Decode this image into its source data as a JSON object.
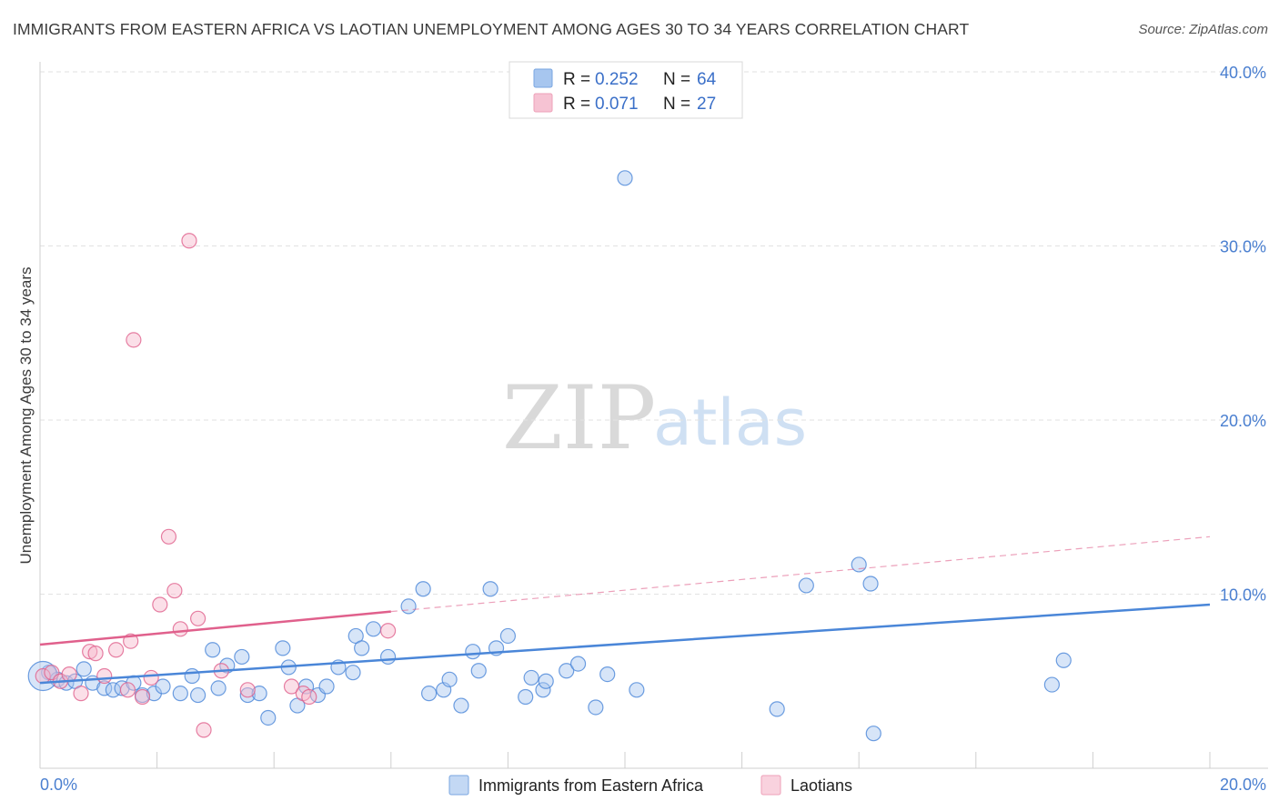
{
  "title": "IMMIGRANTS FROM EASTERN AFRICA VS LAOTIAN UNEMPLOYMENT AMONG AGES 30 TO 34 YEARS CORRELATION CHART",
  "source": "Source: ZipAtlas.com",
  "watermark": {
    "zip": "ZIP",
    "atlas": "atlas"
  },
  "legend_top": [
    {
      "r_label": "R =",
      "r_value": "0.252",
      "n_label": "N =",
      "n_value": "64",
      "color": "#a7c6ef"
    },
    {
      "r_label": "R =",
      "r_value": "0.071",
      "n_label": "N =",
      "n_value": "27",
      "color": "#f6b8cb"
    }
  ],
  "chart_data": {
    "type": "scatter",
    "xlabel": "",
    "ylabel": "Unemployment Among Ages 30 to 34 years",
    "xlim": [
      0,
      20
    ],
    "ylim": [
      0,
      40
    ],
    "x_tick_labels": [
      "0.0%",
      "20.0%"
    ],
    "y_ticks": [
      10,
      20,
      30,
      40
    ],
    "y_tick_labels": [
      "10.0%",
      "20.0%",
      "30.0%",
      "40.0%"
    ],
    "grid": "horizontal dashed",
    "legend_placement": "bottom-center",
    "series": [
      {
        "name": "Immigrants from Eastern Africa",
        "color": "#4a86d8",
        "fill": "#a7c6ef",
        "trend": {
          "x": [
            0,
            20
          ],
          "y": [
            4.9,
            9.4
          ],
          "style": "solid"
        },
        "points": [
          [
            0.15,
            5.5
          ],
          [
            0.3,
            5.1
          ],
          [
            0.45,
            4.9
          ],
          [
            0.6,
            5.0
          ],
          [
            0.75,
            5.7
          ],
          [
            0.9,
            4.9
          ],
          [
            1.1,
            4.6
          ],
          [
            1.25,
            4.5
          ],
          [
            1.4,
            4.6
          ],
          [
            1.6,
            4.9
          ],
          [
            1.75,
            4.2
          ],
          [
            1.95,
            4.3
          ],
          [
            2.1,
            4.7
          ],
          [
            2.4,
            4.3
          ],
          [
            2.6,
            5.3
          ],
          [
            2.7,
            4.2
          ],
          [
            2.95,
            6.8
          ],
          [
            3.05,
            4.6
          ],
          [
            3.2,
            5.9
          ],
          [
            3.45,
            6.4
          ],
          [
            3.55,
            4.2
          ],
          [
            3.75,
            4.3
          ],
          [
            3.9,
            2.9
          ],
          [
            4.15,
            6.9
          ],
          [
            4.25,
            5.8
          ],
          [
            4.4,
            3.6
          ],
          [
            4.55,
            4.7
          ],
          [
            4.75,
            4.2
          ],
          [
            4.9,
            4.7
          ],
          [
            5.1,
            5.8
          ],
          [
            5.35,
            5.5
          ],
          [
            5.4,
            7.6
          ],
          [
            5.5,
            6.9
          ],
          [
            5.7,
            8.0
          ],
          [
            5.95,
            6.4
          ],
          [
            6.3,
            9.3
          ],
          [
            6.55,
            10.3
          ],
          [
            6.65,
            4.3
          ],
          [
            6.9,
            4.5
          ],
          [
            7.0,
            5.1
          ],
          [
            7.2,
            3.6
          ],
          [
            7.4,
            6.7
          ],
          [
            7.5,
            5.6
          ],
          [
            7.7,
            10.3
          ],
          [
            7.8,
            6.9
          ],
          [
            8.0,
            7.6
          ],
          [
            8.3,
            4.1
          ],
          [
            8.4,
            5.2
          ],
          [
            8.6,
            4.5
          ],
          [
            8.65,
            5.0
          ],
          [
            9.0,
            5.6
          ],
          [
            9.2,
            6.0
          ],
          [
            9.5,
            3.5
          ],
          [
            9.7,
            5.4
          ],
          [
            10.0,
            33.9
          ],
          [
            10.2,
            4.5
          ],
          [
            12.6,
            3.4
          ],
          [
            13.1,
            10.5
          ],
          [
            14.0,
            11.7
          ],
          [
            14.2,
            10.6
          ],
          [
            14.25,
            2.0
          ],
          [
            17.3,
            4.8
          ],
          [
            17.5,
            6.2
          ],
          [
            0.05,
            5.3
          ]
        ]
      },
      {
        "name": "Laotians",
        "color": "#e0608c",
        "fill": "#f6b8cb",
        "trend": {
          "x": [
            0,
            6
          ],
          "y": [
            7.1,
            9.0
          ],
          "style": "solid",
          "extended": {
            "x": [
              6,
              20
            ],
            "y": [
              9.0,
              13.3
            ],
            "style": "dashed"
          }
        },
        "points": [
          [
            0.05,
            5.3
          ],
          [
            0.2,
            5.5
          ],
          [
            0.35,
            5.0
          ],
          [
            0.5,
            5.4
          ],
          [
            0.7,
            4.3
          ],
          [
            0.85,
            6.7
          ],
          [
            0.95,
            6.6
          ],
          [
            1.1,
            5.3
          ],
          [
            1.3,
            6.8
          ],
          [
            1.5,
            4.5
          ],
          [
            1.55,
            7.3
          ],
          [
            1.6,
            24.6
          ],
          [
            1.75,
            4.1
          ],
          [
            1.9,
            5.2
          ],
          [
            2.05,
            9.4
          ],
          [
            2.2,
            13.3
          ],
          [
            2.3,
            10.2
          ],
          [
            2.4,
            8.0
          ],
          [
            2.55,
            30.3
          ],
          [
            2.7,
            8.6
          ],
          [
            2.8,
            2.2
          ],
          [
            3.1,
            5.6
          ],
          [
            3.55,
            4.5
          ],
          [
            4.3,
            4.7
          ],
          [
            4.5,
            4.3
          ],
          [
            4.6,
            4.1
          ],
          [
            5.95,
            7.9
          ]
        ]
      }
    ]
  }
}
